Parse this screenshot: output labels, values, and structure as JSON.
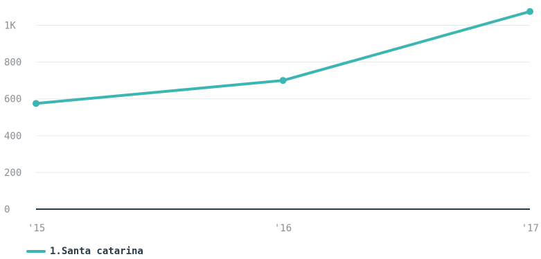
{
  "chart_data": {
    "type": "line",
    "x": [
      "'15",
      "'16",
      "'17"
    ],
    "series": [
      {
        "name": "1.Santa catarina",
        "values": [
          575,
          700,
          1075
        ],
        "color": "#3cb6b3"
      }
    ],
    "yticks": [
      0,
      200,
      400,
      600,
      800,
      1000
    ],
    "ytick_labels": [
      "0",
      "200",
      "400",
      "600",
      "800",
      "1K"
    ],
    "ylim": [
      0,
      1100
    ],
    "grid": true,
    "legend_position": "bottom-left",
    "baseline_color": "#2a3b47"
  }
}
